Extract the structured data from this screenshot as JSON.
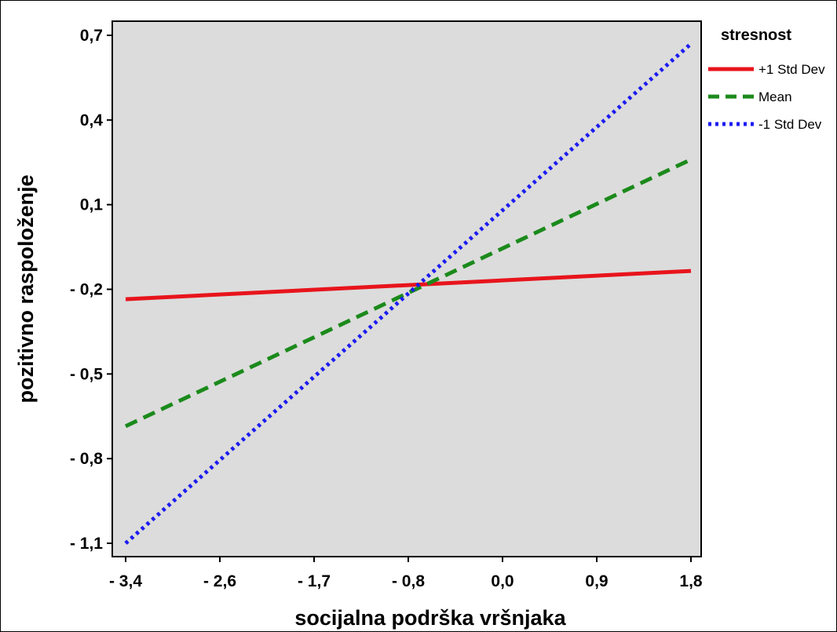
{
  "chart_data": {
    "type": "line",
    "title": "",
    "xlabel": "socijalna podrška vršnjaka",
    "ylabel": "pozitivno raspoloženje",
    "x_ticks": [
      "- 3,4",
      "- 2,6",
      "- 1,7",
      "- 0,8",
      "0,0",
      "0,9",
      "1,8"
    ],
    "y_ticks": [
      "0,7",
      "0,4",
      "0,1",
      "- 0,2",
      "- 0,5",
      "- 0,8",
      "- 1,1"
    ],
    "xlim": [
      -3.4,
      1.8
    ],
    "ylim": [
      -1.1,
      0.7
    ],
    "grid": false,
    "legend": {
      "title": "stresnost",
      "position": "right"
    },
    "series": [
      {
        "name": "+1 Std Dev",
        "color": "#e8141c",
        "style": "solid",
        "x": [
          -3.4,
          1.8
        ],
        "y": [
          -0.235,
          -0.135
        ]
      },
      {
        "name": "Mean",
        "color": "#1b8a1b",
        "style": "dashed",
        "x": [
          -3.4,
          1.8
        ],
        "y": [
          -0.685,
          0.26
        ]
      },
      {
        "name": "-1 Std Dev",
        "color": "#1c1cf0",
        "style": "dotted",
        "x": [
          -3.4,
          1.8
        ],
        "y": [
          -1.1,
          0.67
        ]
      }
    ],
    "plot_background": "#dcdcdc"
  }
}
